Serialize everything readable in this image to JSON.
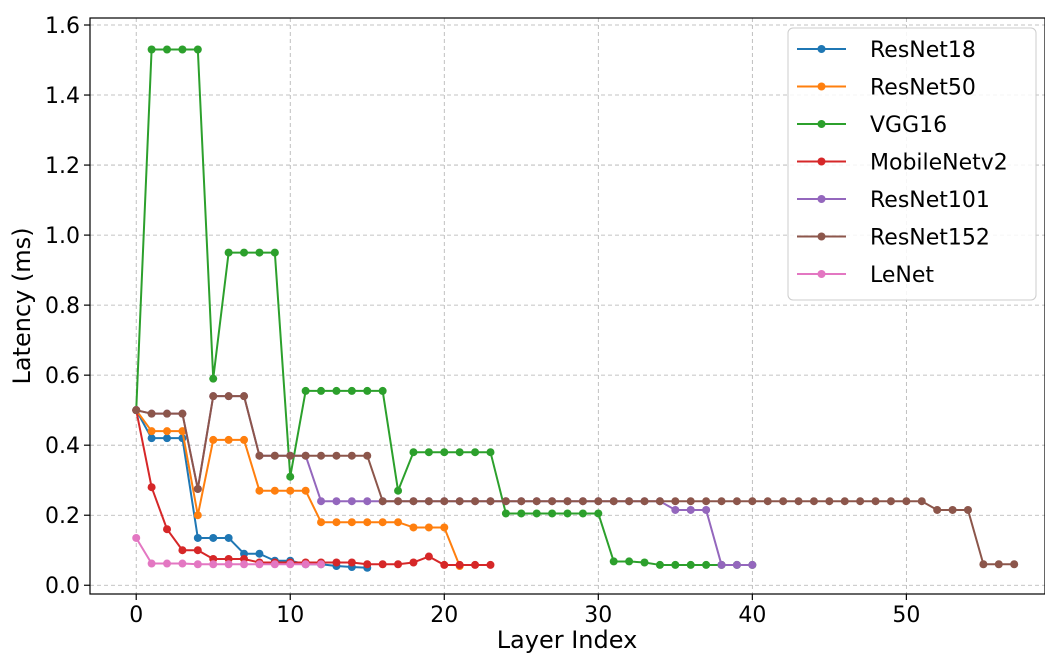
{
  "chart_data": {
    "type": "line",
    "xlabel": "Layer Index",
    "ylabel": "Latency (ms)",
    "xlim": [
      -3,
      59
    ],
    "ylim": [
      -0.025,
      1.62
    ],
    "xticks": [
      0,
      10,
      20,
      30,
      40,
      50
    ],
    "yticks": [
      0.0,
      0.2,
      0.4,
      0.6,
      0.8,
      1.0,
      1.2,
      1.4,
      1.6
    ],
    "ytick_labels": [
      "0.0",
      "0.2",
      "0.4",
      "0.6",
      "0.8",
      "1.0",
      "1.2",
      "1.4",
      "1.6"
    ],
    "grid": true,
    "legend_position": "top-right",
    "series": [
      {
        "name": "ResNet18",
        "color": "#1f77b4",
        "values": [
          0.5,
          0.42,
          0.42,
          0.42,
          0.135,
          0.135,
          0.135,
          0.09,
          0.09,
          0.07,
          0.07,
          0.06,
          0.06,
          0.055,
          0.052,
          0.05
        ]
      },
      {
        "name": "ResNet50",
        "color": "#ff7f0e",
        "values": [
          0.5,
          0.44,
          0.44,
          0.44,
          0.2,
          0.415,
          0.415,
          0.415,
          0.27,
          0.27,
          0.27,
          0.27,
          0.18,
          0.18,
          0.18,
          0.18,
          0.18,
          0.18,
          0.165,
          0.165,
          0.165,
          0.055
        ]
      },
      {
        "name": "VGG16",
        "color": "#2ca02c",
        "values": [
          0.5,
          1.53,
          1.53,
          1.53,
          1.53,
          0.59,
          0.95,
          0.95,
          0.95,
          0.95,
          0.31,
          0.555,
          0.555,
          0.555,
          0.555,
          0.555,
          0.555,
          0.27,
          0.38,
          0.38,
          0.38,
          0.38,
          0.38,
          0.38,
          0.205,
          0.205,
          0.205,
          0.205,
          0.205,
          0.205,
          0.205,
          0.068,
          0.068,
          0.065,
          0.058,
          0.058,
          0.058,
          0.058,
          0.058,
          0.058,
          0.058
        ]
      },
      {
        "name": "MobileNetv2",
        "color": "#d62728",
        "values": [
          0.5,
          0.28,
          0.16,
          0.1,
          0.1,
          0.075,
          0.075,
          0.075,
          0.065,
          0.065,
          0.065,
          0.065,
          0.065,
          0.065,
          0.065,
          0.06,
          0.06,
          0.06,
          0.065,
          0.082,
          0.058,
          0.058,
          0.058,
          0.058
        ]
      },
      {
        "name": "ResNet101",
        "color": "#9467bd",
        "values": [
          0.5,
          0.49,
          0.49,
          0.49,
          0.275,
          0.54,
          0.54,
          0.54,
          0.37,
          0.37,
          0.37,
          0.37,
          0.24,
          0.24,
          0.24,
          0.24,
          0.24,
          0.24,
          0.24,
          0.24,
          0.24,
          0.24,
          0.24,
          0.24,
          0.24,
          0.24,
          0.24,
          0.24,
          0.24,
          0.24,
          0.24,
          0.24,
          0.24,
          0.24,
          0.24,
          0.215,
          0.215,
          0.215,
          0.058,
          0.058,
          0.058
        ]
      },
      {
        "name": "ResNet152",
        "color": "#8c564b",
        "values": [
          0.5,
          0.49,
          0.49,
          0.49,
          0.275,
          0.54,
          0.54,
          0.54,
          0.37,
          0.37,
          0.37,
          0.37,
          0.37,
          0.37,
          0.37,
          0.37,
          0.24,
          0.24,
          0.24,
          0.24,
          0.24,
          0.24,
          0.24,
          0.24,
          0.24,
          0.24,
          0.24,
          0.24,
          0.24,
          0.24,
          0.24,
          0.24,
          0.24,
          0.24,
          0.24,
          0.24,
          0.24,
          0.24,
          0.24,
          0.24,
          0.24,
          0.24,
          0.24,
          0.24,
          0.24,
          0.24,
          0.24,
          0.24,
          0.24,
          0.24,
          0.24,
          0.24,
          0.215,
          0.215,
          0.215,
          0.06,
          0.06,
          0.06
        ]
      },
      {
        "name": "LeNet",
        "color": "#e377c2",
        "values": [
          0.135,
          0.062,
          0.062,
          0.062,
          0.06,
          0.06,
          0.06,
          0.06,
          0.06,
          0.06,
          0.06,
          0.06,
          0.06
        ]
      }
    ]
  }
}
